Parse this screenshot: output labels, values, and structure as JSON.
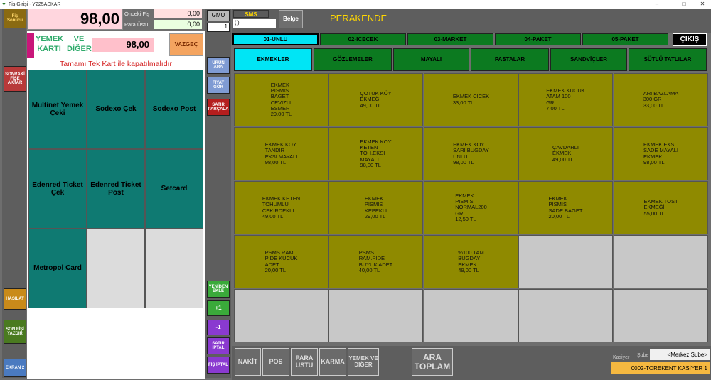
{
  "window": {
    "title": "Fiş Girişi - Y225ASKAR",
    "minimize": "–",
    "maximize": "□",
    "close": "✕"
  },
  "header": {
    "fis_sonucu": "Fiş Sonucu",
    "total": "98,00",
    "onceki_fis_label": "Önceki Fiş",
    "onceki_fis_value": "0,00",
    "para_ustu_label": "Para Üstü",
    "para_ustu_value": "0,00"
  },
  "payment_panel": {
    "yemek_karti": "YEMEK KARTI",
    "ve_diger": "VE DİĞER",
    "amount": "98,00",
    "vazgec": "VAZGEÇ",
    "notice": "Tamamı Tek Kart ile kapatılmalıdır",
    "cards": [
      "Multinet Yemek Çeki",
      "Sodexo Çek",
      "Sodexo Post",
      "Edenred Ticket Çek",
      "Edenred Ticket Post",
      "Setcard",
      "Metropol Card",
      "",
      ""
    ]
  },
  "left_buttons": {
    "sonraki_fise_aktar": "SONRAKİ FİŞE AKTAR",
    "hasilat": "HASILAT",
    "son_fisi_yazdir": "SON FİŞİ YAZDIR",
    "ekran2": "EKRAN 2"
  },
  "mid_buttons": {
    "gmu": "GMU",
    "gmu_value": "1",
    "urun_ara": "ÜRÜN ARA",
    "fiyat_gor": "FİYAT GÖR",
    "satir_parcala": "SATIR PARÇALA",
    "yeniden_ekle": "YENİDEN EKLE",
    "plus1": "+1",
    "minus1": "-1",
    "satir_iptal": "SATIR İPTAL",
    "fis_iptal": "FİŞ İPTAL"
  },
  "topbar": {
    "sms": "SMS",
    "sms_value": "( )",
    "belge": "Belge",
    "mode": "PERAKENDE",
    "cikis": "ÇIKIŞ"
  },
  "category_tabs": [
    "01-UNLU",
    "02-ICECEK",
    "03-MARKET",
    "04-PAKET",
    "05-PAKET"
  ],
  "sub_tabs": [
    "EKMEKLER",
    "GÖZLEMELER",
    "MAYALI",
    "PASTALAR",
    "SANDVİÇLER",
    "SÜTLÜ TATLILAR"
  ],
  "products": [
    "EKMEK\nPISMIS\nBAGET\nCEVIZLI\nESMER\n29,00 TL",
    "ÇOTUK KÖY\nEKMEĞİ\n49,00 TL",
    "EKMEK CICEK\n33,00 TL",
    "EKMEK KUCUK\nATAM 100\nGR\n7,00 TL",
    "ARI BAZLAMA\n300 GR\n33,00 TL",
    "EKMEK KOY\nTANDIR\nEKSI MAYALI\n98,00 TL",
    "EKMEK KOY\nKETEN\nTOH.EKSI\nMAYALI\n98,00 TL",
    "EKMEK KOY\nSARI BUGDAY\nUNLU\n98,00 TL",
    "ÇAVDARLI\nEKMEK\n49,00 TL",
    "EKMEK EKSI\nSADE MAYALI\nEKMEK\n98,00 TL",
    "EKMEK KETEN\nTOHUMLU\nCEKIRDEKLI\n49,00 TL",
    "EKMEK\nPISMIS\nKEPEKLI\n29,00 TL",
    "EKMEK\nPISMIS\nNORMAL200\nGR\n12,50 TL",
    "EKMEK\nPISMIS\nSADE BAGET\n20,00 TL",
    "EKMEK TOST\nEKMEĞİ\n55,00 TL",
    "PSMS RAM.\nPIDE KUCUK\nADET\n20,00 TL",
    "PSMS\nRAM.PIDE\nBUYUK ADET\n40,00 TL",
    "%100 TAM\nBUGDAY\nEKMEK\n49,00 TL",
    "",
    "",
    "",
    "",
    "",
    "",
    ""
  ],
  "bottom": {
    "nakit": "NAKİT",
    "pos": "POS",
    "para_ustu": "PARA ÜSTÜ",
    "karma": "KARMA",
    "yemek_ve_diger": "YEMEK VE DİĞER",
    "ara_toplam": "ARA TOPLAM",
    "kasiyer_label": "Kasiyer",
    "sube_label": "Şube",
    "sube_value": "<Merkez Şube>",
    "kasiyer_value": "0002-TOREKENT KASİYER 1"
  },
  "colors": {
    "teal": "#0f7a72",
    "olive": "#8f8a00",
    "green_tab": "#0c7a20",
    "cyan_active": "#00e5f5",
    "orange": "#f4a460"
  }
}
